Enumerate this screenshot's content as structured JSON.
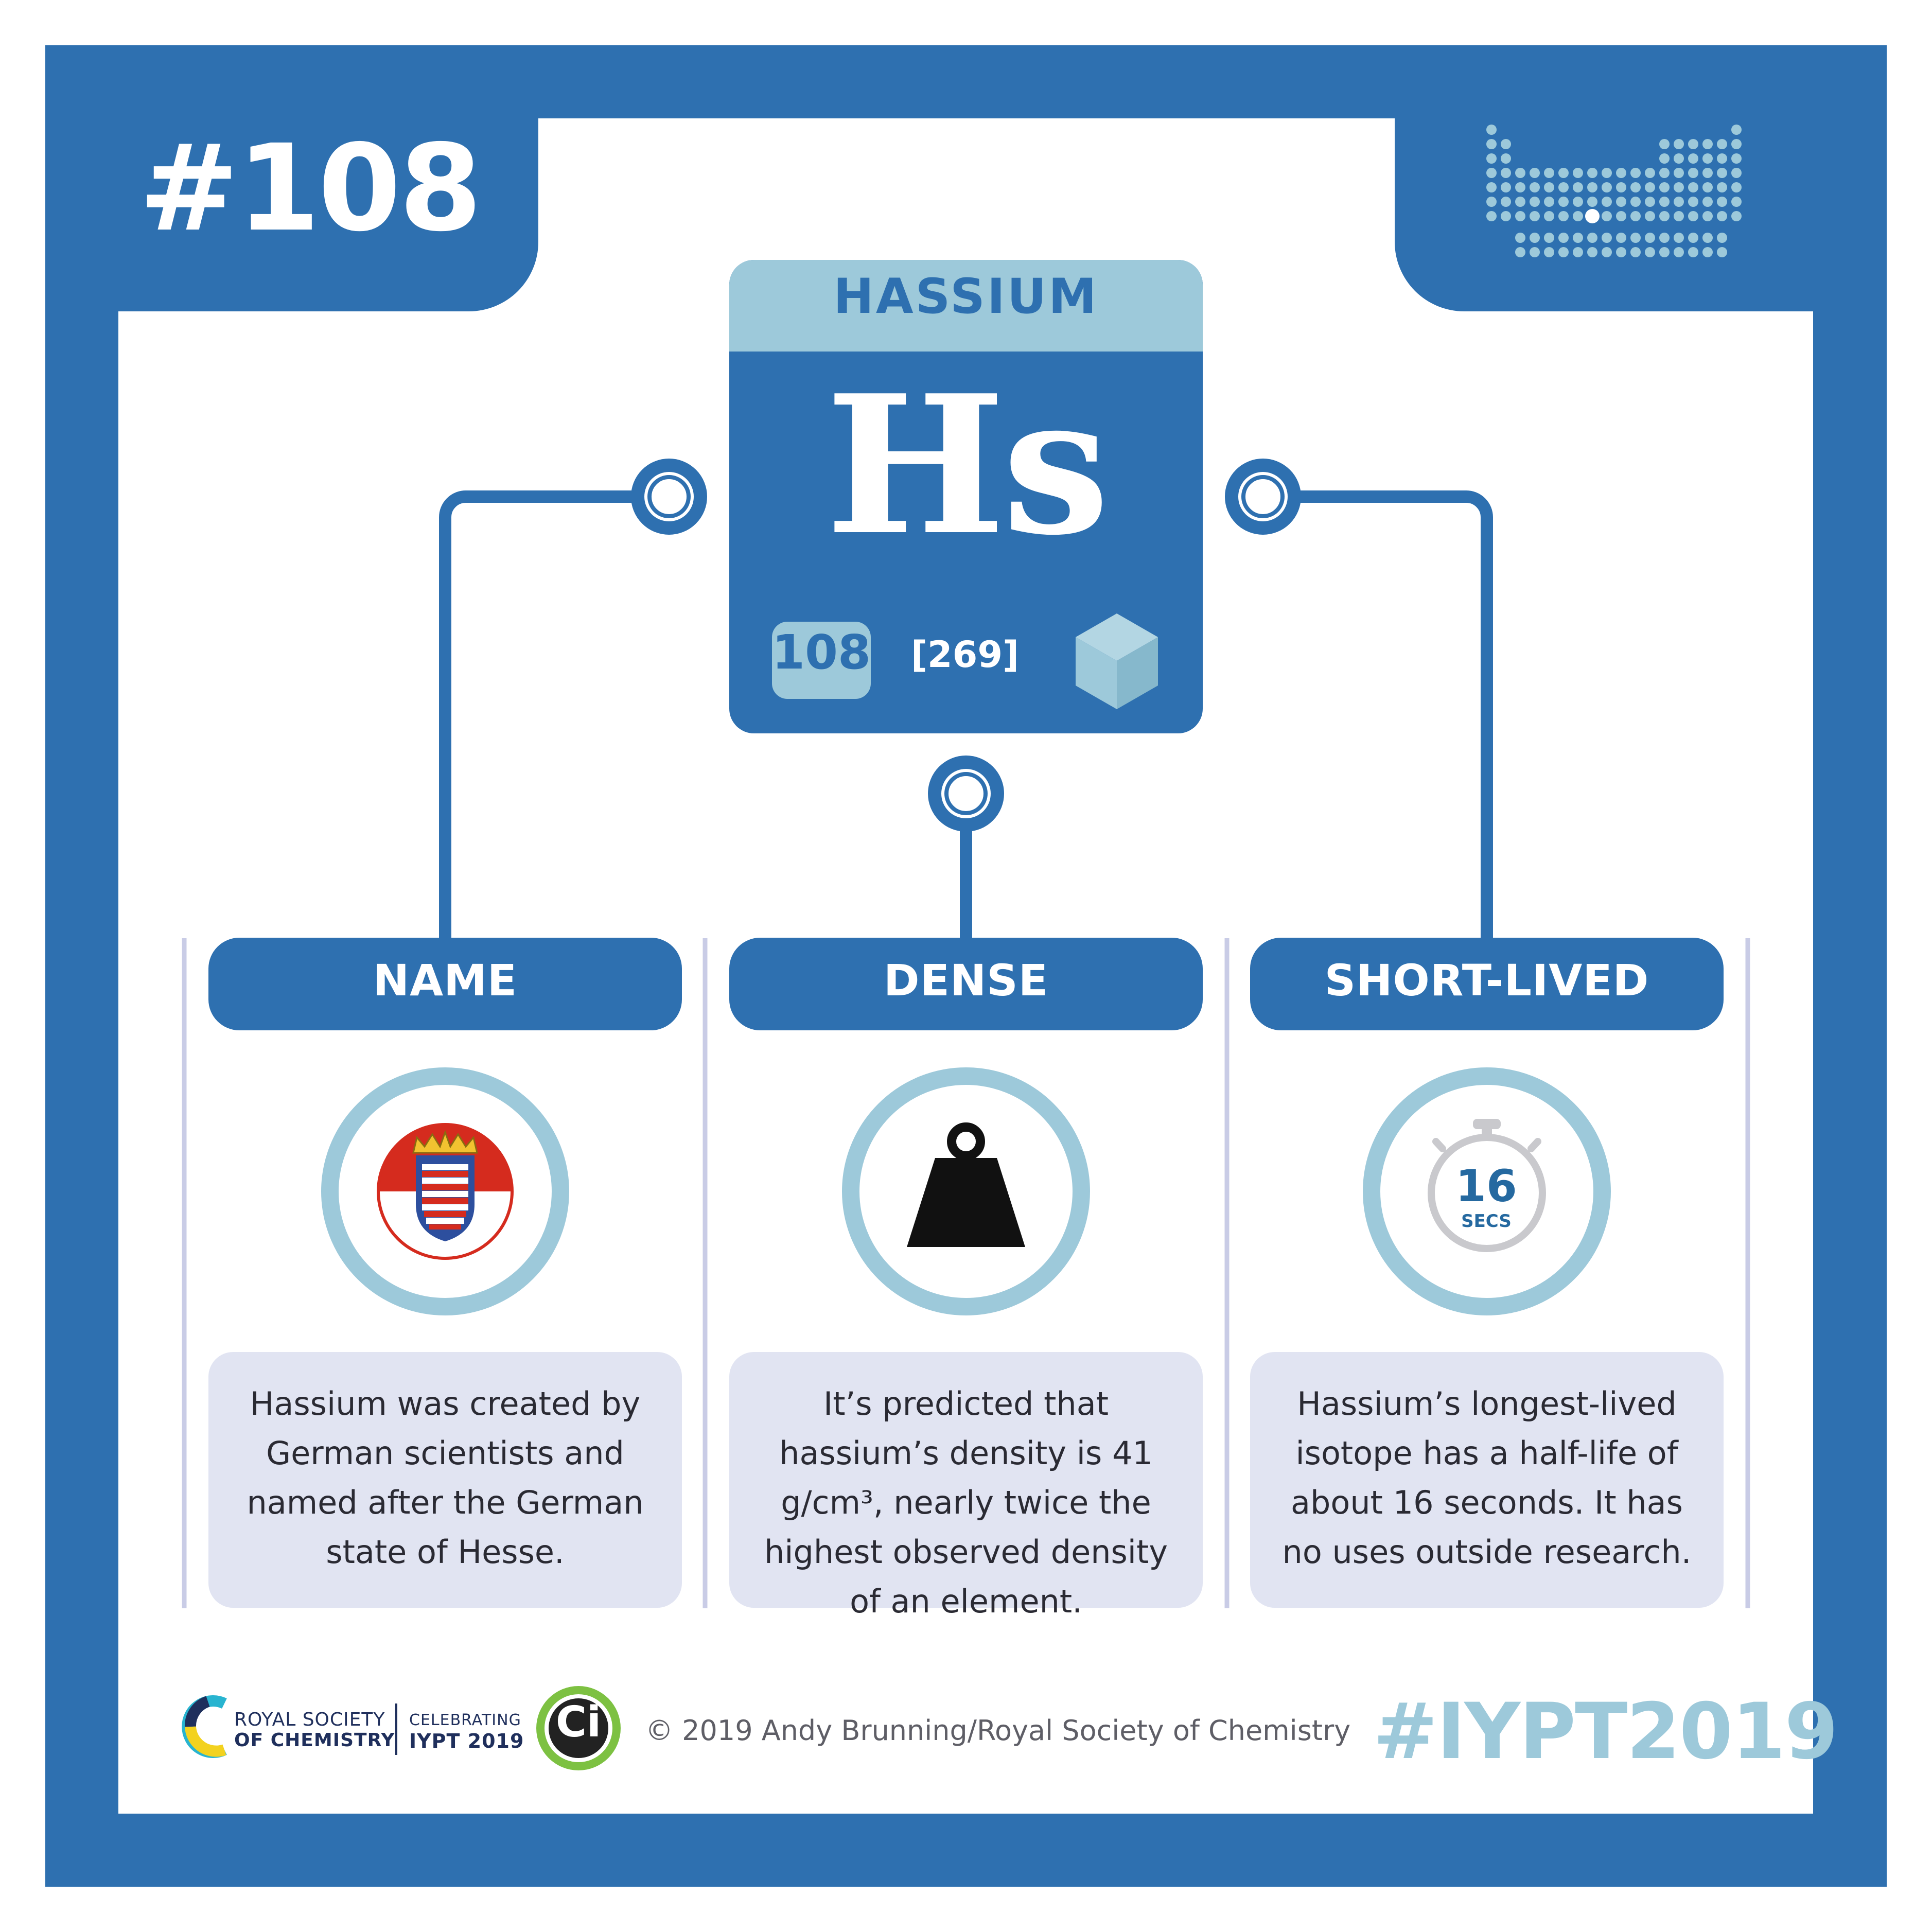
{
  "element_number_title": "#108",
  "element": {
    "name": "HASSIUM",
    "symbol": "Hs",
    "atomic_number": "108",
    "atomic_mass": "[269]"
  },
  "columns": [
    {
      "title": "NAME",
      "icon": "hesse-coat-of-arms-icon",
      "text": "Hassium was created by German scientists and named after the German state of Hesse."
    },
    {
      "title": "DENSE",
      "icon": "weight-icon",
      "text": "It’s predicted that hassium’s density is 41 g/cm³, nearly twice the highest observed density of an element."
    },
    {
      "title": "SHORT-LIVED",
      "icon": "stopwatch-icon",
      "text": "Hassium’s longest-lived isotope has a half-life of about 16 seconds. It has no uses outside research."
    }
  ],
  "timer": {
    "value": "16",
    "unit": "SECS"
  },
  "footer": {
    "rsc_line1": "ROYAL SOCIETY",
    "rsc_line2": "OF CHEMISTRY",
    "iypt_line1": "CELEBRATING",
    "iypt_line2": "IYPT 2019",
    "ci_logo": "Ci",
    "copyright": "© 2019 Andy Brunning/Royal Society of Chemistry",
    "hashtag": "#IYPT2019"
  },
  "colors": {
    "primary_blue": "#2e70b0",
    "light_blue": "#9dc9da",
    "pale_lavender": "#e1e4f2",
    "hesse_red": "#d52b1e",
    "ci_green": "#7dc142"
  }
}
